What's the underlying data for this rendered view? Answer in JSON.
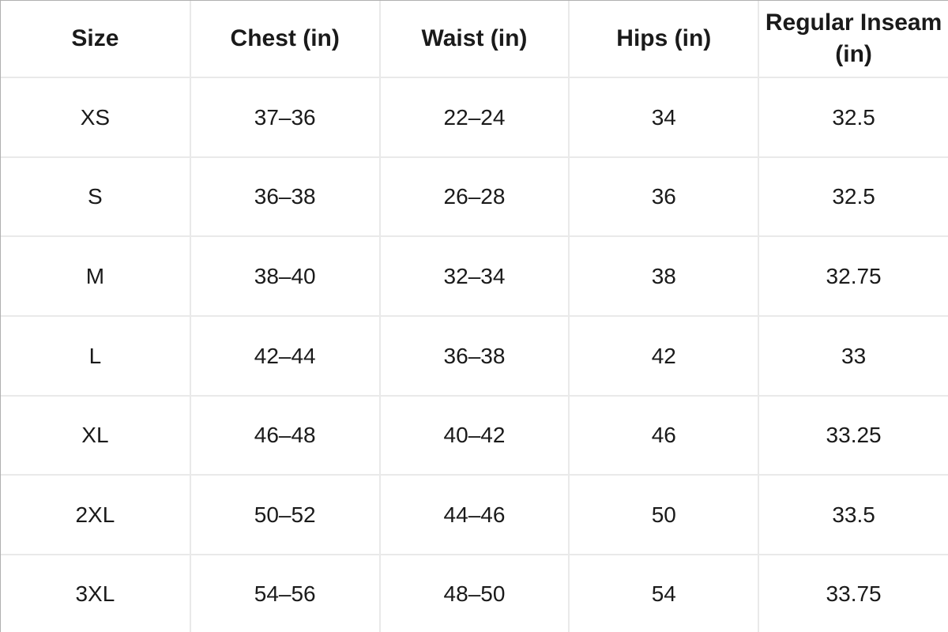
{
  "chart_data": {
    "type": "table",
    "columns": [
      "Size",
      "Chest (in)",
      "Waist (in)",
      "Hips (in)",
      "Regular Inseam (in)"
    ],
    "rows": [
      [
        "XS",
        "37–36",
        "22–24",
        "34",
        "32.5"
      ],
      [
        "S",
        "36–38",
        "26–28",
        "36",
        "32.5"
      ],
      [
        "M",
        "38–40",
        "32–34",
        "38",
        "32.75"
      ],
      [
        "L",
        "42–44",
        "36–38",
        "42",
        "33"
      ],
      [
        "XL",
        "46–48",
        "40–42",
        "46",
        "33.25"
      ],
      [
        "2XL",
        "50–52",
        "44–46",
        "50",
        "33.5"
      ],
      [
        "3XL",
        "54–56",
        "48–50",
        "54",
        "33.75"
      ]
    ],
    "layout": {
      "grid": "on",
      "column_count": 5,
      "row_count": 7,
      "text_align": "center"
    },
    "colors": {
      "background": "#ffffff",
      "text": "#1a1a1a",
      "grid_line": "#e9e9e9",
      "outer_border": "#b0b0b0"
    }
  }
}
